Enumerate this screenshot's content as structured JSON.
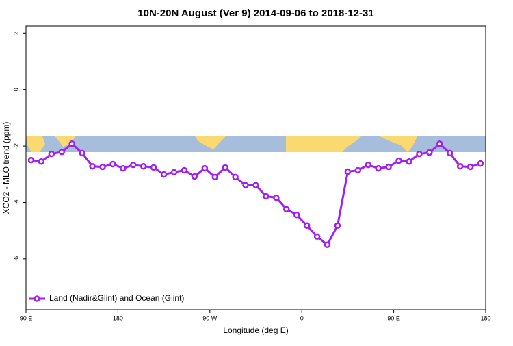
{
  "chart_data": {
    "type": "line",
    "title": "10N-20N August (Ver 9)   2014-09-06 to 2018-12-31",
    "x_label": "Longitude (deg E)",
    "y_label": "XCO2 - MLO trend (ppm)",
    "x": [
      95,
      105,
      115,
      125,
      135,
      145,
      155,
      165,
      175,
      185,
      195,
      205,
      215,
      225,
      235,
      245,
      255,
      265,
      275,
      285,
      295,
      305,
      315,
      325,
      335,
      345,
      355,
      365,
      375,
      385,
      395,
      405,
      415,
      425,
      435,
      445,
      455,
      465,
      475,
      485,
      495,
      505,
      515,
      525,
      535
    ],
    "series": [
      {
        "name": "Land (Nadir&Glint) and Ocean (Glint)",
        "color": "#a020f0",
        "values": [
          -2.5,
          -2.55,
          -2.28,
          -2.21,
          -1.92,
          -2.25,
          -2.72,
          -2.74,
          -2.64,
          -2.79,
          -2.67,
          -2.72,
          -2.76,
          -3.01,
          -2.93,
          -2.86,
          -3.08,
          -2.79,
          -3.1,
          -2.76,
          -3.1,
          -3.39,
          -3.39,
          -3.78,
          -3.83,
          -4.24,
          -4.44,
          -4.82,
          -5.21,
          -5.5,
          -4.82,
          -2.91,
          -2.86,
          -2.67,
          -2.79,
          -2.74,
          -2.52,
          -2.55,
          -2.28,
          -2.23,
          -1.92,
          -2.25,
          -2.72,
          -2.74,
          -2.62
        ]
      }
    ],
    "xlim": [
      90,
      540
    ],
    "xticks": [
      {
        "value": 90,
        "label": "90 E"
      },
      {
        "value": 180,
        "label": "180"
      },
      {
        "value": 270,
        "label": "90 W"
      },
      {
        "value": 360,
        "label": "0"
      },
      {
        "value": 450,
        "label": "90 E"
      },
      {
        "value": 540,
        "label": "180"
      }
    ],
    "ylim": [
      -7.8,
      2.25
    ],
    "yticks": [
      2,
      0,
      -2,
      -4,
      -6
    ],
    "legend": "bottomleft"
  }
}
